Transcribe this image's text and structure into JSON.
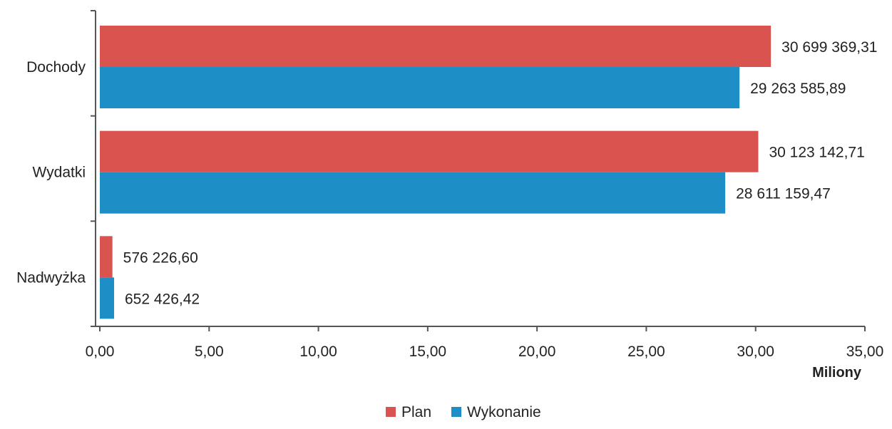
{
  "chart_data": {
    "type": "bar",
    "orientation": "horizontal",
    "categories": [
      "Dochody",
      "Wydatki",
      "Nadwyżka"
    ],
    "series": [
      {
        "name": "Plan",
        "color": "#d9534f",
        "values": [
          30.69936931,
          30.12314271,
          0.5762266
        ],
        "labels": [
          "30 699 369,31",
          "30 123 142,71",
          "576 226,60"
        ]
      },
      {
        "name": "Wykonanie",
        "color": "#1e8fc6",
        "values": [
          29.26358589,
          28.61115947,
          0.65242642
        ],
        "labels": [
          "29 263 585,89",
          "28 611 159,47",
          "652 426,42"
        ]
      }
    ],
    "x_unit_label": "Miliony",
    "xlim": [
      0,
      35
    ],
    "x_ticks": [
      "0,00",
      "5,00",
      "10,00",
      "15,00",
      "20,00",
      "25,00",
      "30,00",
      "35,00"
    ],
    "grid": false,
    "legend_position": "bottom"
  }
}
